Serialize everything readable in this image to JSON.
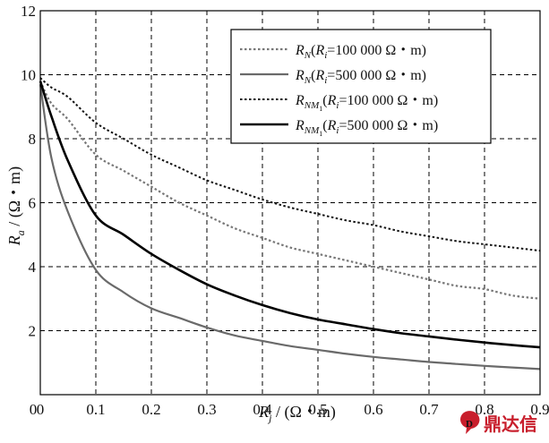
{
  "chart_data": {
    "type": "line",
    "xlabel": {
      "var": "R",
      "sub": "j",
      "unit": " / (Ω・m)"
    },
    "ylabel": {
      "var": "R",
      "sub": "a",
      "unit": " / (Ω・m)"
    },
    "xlim": [
      0,
      0.9
    ],
    "ylim": [
      0,
      12
    ],
    "x_ticks": [
      "0",
      "0.1",
      "0.2",
      "0.3",
      "0.4",
      "0.5",
      "0.6",
      "0.7",
      "0.8",
      "0.9"
    ],
    "y_ticks": [
      "0",
      "2",
      "4",
      "6",
      "8",
      "10",
      "12"
    ],
    "grid": true,
    "legend_position": "top-right",
    "x": [
      0,
      0.02,
      0.05,
      0.1,
      0.15,
      0.2,
      0.25,
      0.3,
      0.35,
      0.4,
      0.45,
      0.5,
      0.55,
      0.6,
      0.65,
      0.7,
      0.75,
      0.8,
      0.85,
      0.9
    ],
    "series": [
      {
        "name": "R_N(R_i=100 000 Ω・m)",
        "legend": {
          "var": "R",
          "sub": "N",
          "paren_var": "R",
          "paren_sub": "i",
          "rest": "=100 000  Ω・m)"
        },
        "color": "#777777",
        "dash": "2.5 2.5",
        "width": 2.2,
        "values": [
          9.8,
          9.1,
          8.6,
          7.5,
          7.0,
          6.5,
          6.0,
          5.6,
          5.2,
          4.9,
          4.6,
          4.4,
          4.2,
          4.0,
          3.8,
          3.6,
          3.4,
          3.3,
          3.1,
          3.0
        ]
      },
      {
        "name": "R_N(R_i=500 000 Ω・m)",
        "legend": {
          "var": "R",
          "sub": "N",
          "paren_var": "R",
          "paren_sub": "i",
          "rest": "=500 000  Ω・m)"
        },
        "color": "#6a6a6a",
        "dash": "",
        "width": 2.2,
        "values": [
          9.7,
          7.4,
          5.7,
          3.9,
          3.2,
          2.7,
          2.4,
          2.1,
          1.85,
          1.68,
          1.52,
          1.4,
          1.28,
          1.18,
          1.1,
          1.02,
          0.96,
          0.9,
          0.85,
          0.8
        ]
      },
      {
        "name": "R_NM1(R_i=100 000 Ω・m)",
        "legend": {
          "var": "R",
          "sub": "NM",
          "subsub": "1",
          "paren_var": "R",
          "paren_sub": "i",
          "rest": "=100 000  Ω・m)"
        },
        "color": "#111111",
        "dash": "2.5 2.5",
        "width": 2.0,
        "values": [
          9.9,
          9.6,
          9.3,
          8.5,
          8.0,
          7.5,
          7.1,
          6.7,
          6.4,
          6.1,
          5.85,
          5.65,
          5.45,
          5.3,
          5.1,
          4.95,
          4.8,
          4.7,
          4.6,
          4.5
        ]
      },
      {
        "name": "R_NM1(R_i=500 000 Ω・m)",
        "legend": {
          "var": "R",
          "sub": "NM",
          "subsub": "1",
          "paren_var": "R",
          "paren_sub": "i",
          "rest": "=500 000  Ω・m)"
        },
        "color": "#000000",
        "dash": "",
        "width": 2.6,
        "values": [
          9.8,
          8.7,
          7.3,
          5.6,
          5.0,
          4.4,
          3.9,
          3.45,
          3.1,
          2.8,
          2.55,
          2.35,
          2.2,
          2.05,
          1.92,
          1.82,
          1.72,
          1.63,
          1.55,
          1.48
        ]
      }
    ]
  },
  "watermark": {
    "text": "鼎达信",
    "color": "#c81e2c",
    "icon": "speech-bubble-logo-icon"
  }
}
